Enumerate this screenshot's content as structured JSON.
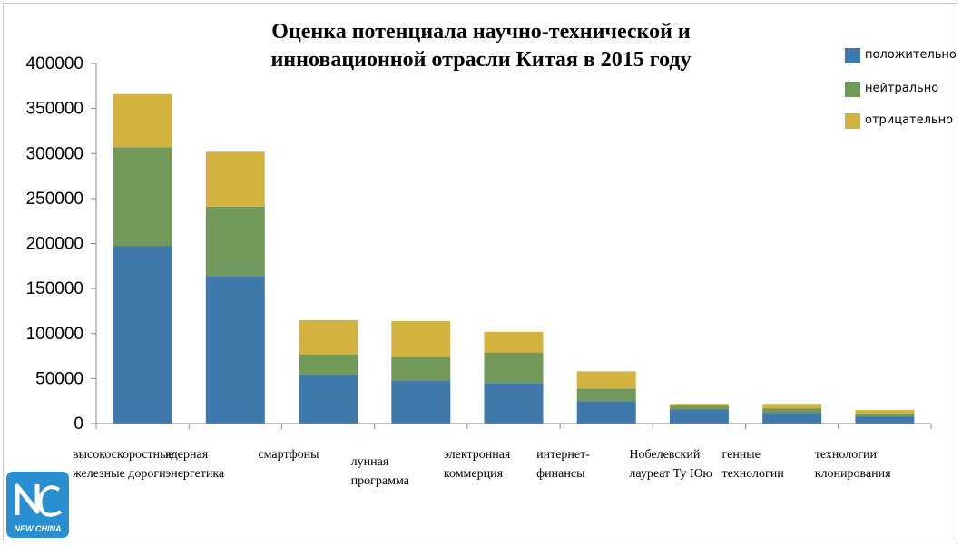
{
  "chart_data": {
    "type": "bar",
    "stacked": true,
    "title": [
      "Оценка потенциала научно-технической и",
      "инновационной отрасли Китая в 2015 году"
    ],
    "categories": [
      [
        "высокоскоростные",
        "железные дороги"
      ],
      [
        "ядерная",
        "энергетика"
      ],
      [
        "смартфоны"
      ],
      [
        "лунная",
        "программа"
      ],
      [
        "электронная",
        "коммерция"
      ],
      [
        "интернет-",
        "финансы"
      ],
      [
        "Нобелевский",
        "лауреат Ту Юю"
      ],
      [
        "генные",
        "технологии"
      ],
      [
        "технологии",
        "клонирования"
      ]
    ],
    "series": [
      {
        "name": "положительно",
        "color": "#3f78aa",
        "values": [
          197000,
          164000,
          54000,
          48000,
          45000,
          25000,
          16000,
          12000,
          8000
        ]
      },
      {
        "name": "нейтрально",
        "color": "#72985a",
        "values": [
          110000,
          77000,
          23000,
          26000,
          34000,
          14000,
          4000,
          5000,
          3000
        ]
      },
      {
        "name": "отрицательно",
        "color": "#d4b23f",
        "values": [
          59000,
          61000,
          38000,
          40000,
          23000,
          19000,
          2000,
          5000,
          4000
        ]
      }
    ],
    "ylim": [
      0,
      400000
    ],
    "yticks": [
      "0",
      "50000",
      "100000",
      "150000",
      "200000",
      "250000",
      "300000",
      "350000",
      "400000"
    ],
    "grid": false,
    "legend_position": "top-right"
  },
  "logo": {
    "text": "NEW CHINA",
    "color": "#2a8fd0"
  }
}
